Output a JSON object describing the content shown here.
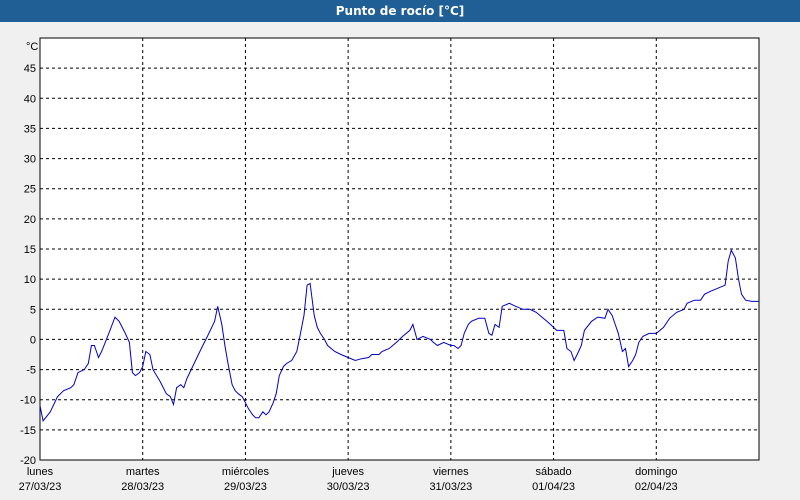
{
  "window": {
    "title": "Punto de rocío [°C]"
  },
  "chart_data": {
    "type": "line",
    "title": "Punto de rocío [°C]",
    "ylabel": "°C",
    "xlabel": "",
    "ylim": [
      -20,
      50
    ],
    "yticks": [
      -20,
      -15,
      -10,
      -5,
      0,
      5,
      10,
      15,
      20,
      25,
      30,
      35,
      40,
      45
    ],
    "xlim": [
      0,
      7
    ],
    "grid": true,
    "x_labels": [
      {
        "day": "lunes",
        "date": "27/03/23"
      },
      {
        "day": "martes",
        "date": "28/03/23"
      },
      {
        "day": "miércoles",
        "date": "29/03/23"
      },
      {
        "day": "jueves",
        "date": "30/03/23"
      },
      {
        "day": "viernes",
        "date": "31/03/23"
      },
      {
        "day": "sábado",
        "date": "01/04/23"
      },
      {
        "day": "domingo",
        "date": "02/04/23"
      }
    ],
    "colors": {
      "line": "#0000c8",
      "grid": "#000000",
      "plot_bg": "#ffffff",
      "title_bar": "#1f5f96"
    },
    "series": [
      {
        "name": "",
        "points": [
          [
            0.0,
            -11.0
          ],
          [
            0.03,
            -13.5
          ],
          [
            0.1,
            -12.0
          ],
          [
            0.17,
            -9.5
          ],
          [
            0.23,
            -8.5
          ],
          [
            0.3,
            -8.0
          ],
          [
            0.33,
            -7.5
          ],
          [
            0.37,
            -5.5
          ],
          [
            0.43,
            -5.0
          ],
          [
            0.47,
            -4.0
          ],
          [
            0.5,
            -1.0
          ],
          [
            0.53,
            -1.0
          ],
          [
            0.57,
            -3.0
          ],
          [
            0.6,
            -2.0
          ],
          [
            0.67,
            1.0
          ],
          [
            0.73,
            3.7
          ],
          [
            0.77,
            3.0
          ],
          [
            0.83,
            1.0
          ],
          [
            0.87,
            -0.5
          ],
          [
            0.9,
            -5.5
          ],
          [
            0.93,
            -6.0
          ],
          [
            0.97,
            -5.5
          ],
          [
            1.0,
            -4.5
          ],
          [
            1.03,
            -2.0
          ],
          [
            1.07,
            -2.5
          ],
          [
            1.1,
            -5.0
          ],
          [
            1.17,
            -7.0
          ],
          [
            1.23,
            -9.0
          ],
          [
            1.27,
            -9.5
          ],
          [
            1.3,
            -10.8
          ],
          [
            1.33,
            -8.0
          ],
          [
            1.37,
            -7.5
          ],
          [
            1.4,
            -8.0
          ],
          [
            1.43,
            -6.5
          ],
          [
            1.5,
            -4.0
          ],
          [
            1.57,
            -1.5
          ],
          [
            1.63,
            0.5
          ],
          [
            1.7,
            3.0
          ],
          [
            1.73,
            5.5
          ],
          [
            1.77,
            2.5
          ],
          [
            1.8,
            -1.0
          ],
          [
            1.83,
            -4.0
          ],
          [
            1.87,
            -7.5
          ],
          [
            1.9,
            -8.5
          ],
          [
            1.93,
            -9.0
          ],
          [
            1.97,
            -9.5
          ],
          [
            2.0,
            -10.5
          ],
          [
            2.03,
            -11.5
          ],
          [
            2.07,
            -12.5
          ],
          [
            2.1,
            -13.0
          ],
          [
            2.13,
            -13.0
          ],
          [
            2.17,
            -12.0
          ],
          [
            2.2,
            -12.5
          ],
          [
            2.23,
            -12.0
          ],
          [
            2.27,
            -10.5
          ],
          [
            2.3,
            -9.0
          ],
          [
            2.33,
            -6.0
          ],
          [
            2.37,
            -4.5
          ],
          [
            2.4,
            -4.0
          ],
          [
            2.45,
            -3.5
          ],
          [
            2.5,
            -2.0
          ],
          [
            2.53,
            0.5
          ],
          [
            2.57,
            4.0
          ],
          [
            2.6,
            9.0
          ],
          [
            2.63,
            9.3
          ],
          [
            2.67,
            4.0
          ],
          [
            2.7,
            2.0
          ],
          [
            2.73,
            1.0
          ],
          [
            2.77,
            0.0
          ],
          [
            2.8,
            -1.0
          ],
          [
            2.87,
            -2.0
          ],
          [
            2.93,
            -2.5
          ],
          [
            3.0,
            -3.0
          ],
          [
            3.07,
            -3.5
          ],
          [
            3.13,
            -3.2
          ],
          [
            3.2,
            -3.0
          ],
          [
            3.23,
            -2.5
          ],
          [
            3.3,
            -2.5
          ],
          [
            3.33,
            -2.0
          ],
          [
            3.4,
            -1.5
          ],
          [
            3.47,
            -0.5
          ],
          [
            3.53,
            0.5
          ],
          [
            3.6,
            1.5
          ],
          [
            3.63,
            2.5
          ],
          [
            3.67,
            0.0
          ],
          [
            3.73,
            0.5
          ],
          [
            3.8,
            0.0
          ],
          [
            3.83,
            -0.5
          ],
          [
            3.87,
            -1.0
          ],
          [
            3.93,
            -0.5
          ],
          [
            4.0,
            -1.0
          ],
          [
            4.03,
            -1.0
          ],
          [
            4.07,
            -1.5
          ],
          [
            4.1,
            -1.0
          ],
          [
            4.13,
            1.0
          ],
          [
            4.17,
            2.5
          ],
          [
            4.2,
            3.0
          ],
          [
            4.27,
            3.5
          ],
          [
            4.33,
            3.5
          ],
          [
            4.37,
            1.0
          ],
          [
            4.4,
            0.7
          ],
          [
            4.43,
            2.5
          ],
          [
            4.47,
            2.0
          ],
          [
            4.5,
            5.5
          ],
          [
            4.57,
            6.0
          ],
          [
            4.63,
            5.5
          ],
          [
            4.7,
            5.0
          ],
          [
            4.77,
            5.0
          ],
          [
            4.83,
            4.5
          ],
          [
            4.9,
            3.5
          ],
          [
            4.97,
            2.5
          ],
          [
            5.03,
            1.5
          ],
          [
            5.1,
            1.5
          ],
          [
            5.13,
            -1.5
          ],
          [
            5.17,
            -2.0
          ],
          [
            5.2,
            -3.5
          ],
          [
            5.23,
            -2.5
          ],
          [
            5.27,
            -1.0
          ],
          [
            5.3,
            1.5
          ],
          [
            5.37,
            3.0
          ],
          [
            5.43,
            3.7
          ],
          [
            5.5,
            3.5
          ],
          [
            5.53,
            5.0
          ],
          [
            5.57,
            4.0
          ],
          [
            5.6,
            2.5
          ],
          [
            5.63,
            1.0
          ],
          [
            5.67,
            -2.0
          ],
          [
            5.7,
            -1.5
          ],
          [
            5.73,
            -4.5
          ],
          [
            5.77,
            -3.5
          ],
          [
            5.8,
            -2.5
          ],
          [
            5.83,
            -0.5
          ],
          [
            5.87,
            0.5
          ],
          [
            5.93,
            1.0
          ],
          [
            6.0,
            1.0
          ],
          [
            6.07,
            2.0
          ],
          [
            6.13,
            3.5
          ],
          [
            6.2,
            4.5
          ],
          [
            6.27,
            5.0
          ],
          [
            6.3,
            6.0
          ],
          [
            6.37,
            6.5
          ],
          [
            6.43,
            6.5
          ],
          [
            6.47,
            7.5
          ],
          [
            6.53,
            8.0
          ],
          [
            6.6,
            8.5
          ],
          [
            6.67,
            9.0
          ],
          [
            6.7,
            13.0
          ],
          [
            6.73,
            14.8
          ],
          [
            6.77,
            13.5
          ],
          [
            6.8,
            10.0
          ],
          [
            6.83,
            7.5
          ],
          [
            6.87,
            6.5
          ],
          [
            6.93,
            6.3
          ],
          [
            7.0,
            6.3
          ]
        ]
      }
    ]
  }
}
